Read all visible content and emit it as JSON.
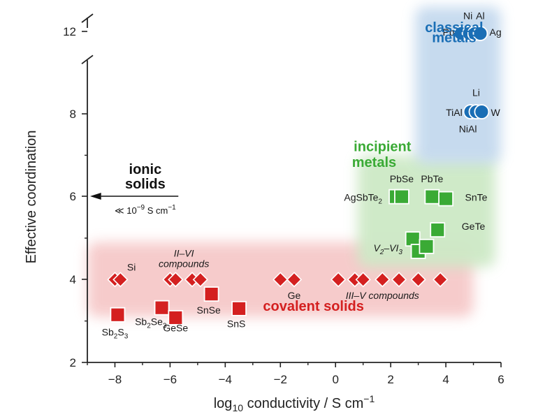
{
  "colors": {
    "covalent": "#d42020",
    "incipient": "#3aaa35",
    "metal": "#1a6eb5",
    "axis": "#222222",
    "covalent_bg": "#f6c9c9",
    "incipient_bg": "#cde9c6",
    "metal_bg": "#c4d9ee"
  },
  "chart_data": {
    "type": "scatter",
    "xlabel": {
      "main": "log",
      "sub": "10",
      "rest": " conductivity / S cm",
      "sup": "−1"
    },
    "ylabel": "Effective coordination",
    "xlim": [
      -9,
      6
    ],
    "ylim": [
      2,
      12
    ],
    "y_break": [
      9.3,
      11.5
    ],
    "xticks": [
      -8,
      -6,
      -4,
      -2,
      0,
      2,
      4,
      6
    ],
    "xtick_labels": [
      "−8",
      "−6",
      "−4",
      "−2",
      "0",
      "2",
      "4",
      "6"
    ],
    "yticks": [
      2,
      4,
      6,
      8,
      12
    ],
    "ytick_labels": [
      "2",
      "4",
      "6",
      "8",
      "12"
    ],
    "regions": [
      {
        "name": "covalent",
        "title": [
          "covalent solids"
        ],
        "x": [
          -9,
          5.0
        ],
        "y": [
          3.1,
          4.9
        ]
      },
      {
        "name": "incipient",
        "title": [
          "incipient",
          "metals"
        ],
        "x": [
          0.8,
          5.8
        ],
        "y": [
          4.3,
          7.0
        ]
      },
      {
        "name": "metal",
        "title": [
          "classical",
          "metals"
        ],
        "x": [
          2.9,
          6.0
        ],
        "y": [
          6.8,
          12.6
        ]
      }
    ],
    "ionic_solids": {
      "title": [
        "ionic",
        "solids"
      ],
      "note": "≪ 10",
      "note_sup": "−9",
      "note_unit": " S cm",
      "note_unit_sup": "−1"
    },
    "series": [
      {
        "name": "covalent solids",
        "marker": "diamond",
        "points": [
          [
            -8.0,
            4.0
          ],
          [
            -7.8,
            4.0
          ],
          [
            -6.0,
            4.0
          ],
          [
            -5.8,
            4.0
          ],
          [
            -5.2,
            4.0
          ],
          [
            -4.9,
            4.0
          ],
          [
            -2.0,
            4.0
          ],
          [
            -1.5,
            4.0
          ],
          [
            0.1,
            4.0
          ],
          [
            0.7,
            4.0
          ],
          [
            1.0,
            4.0
          ],
          [
            1.7,
            4.0
          ],
          [
            2.3,
            4.0
          ],
          [
            3.0,
            4.0
          ],
          [
            3.8,
            4.0
          ]
        ]
      },
      {
        "name": "covalent solids",
        "marker": "square",
        "points": [
          [
            -7.9,
            3.15
          ],
          [
            -6.3,
            3.32
          ],
          [
            -5.8,
            3.08
          ],
          [
            -4.5,
            3.65
          ],
          [
            -3.5,
            3.3
          ]
        ]
      },
      {
        "name": "incipient metals",
        "marker": "square",
        "points": [
          [
            2.2,
            6.0
          ],
          [
            2.4,
            6.0
          ],
          [
            3.5,
            6.0
          ],
          [
            4.0,
            5.95
          ],
          [
            3.7,
            5.2
          ],
          [
            2.8,
            4.98
          ],
          [
            3.0,
            4.68
          ],
          [
            3.3,
            4.8
          ]
        ]
      },
      {
        "name": "classical metals",
        "marker": "circle",
        "points": [
          [
            4.55,
            11.95
          ],
          [
            4.85,
            11.95
          ],
          [
            5.05,
            11.95
          ],
          [
            5.25,
            11.95
          ],
          [
            4.9,
            8.05
          ],
          [
            5.1,
            8.05
          ],
          [
            5.3,
            8.05
          ]
        ]
      }
    ],
    "labels": [
      {
        "text": "Si",
        "x": -7.4,
        "y": 4.22
      },
      {
        "text": "II–VI",
        "x": -5.5,
        "y": 4.55,
        "italic": true
      },
      {
        "text": "compounds",
        "x": -5.5,
        "y": 4.3,
        "italic": true
      },
      {
        "text": "Sb",
        "sub": "2",
        "text2": "S",
        "sub2": "3",
        "x": -8.0,
        "y": 2.65
      },
      {
        "text": "Sb",
        "sub": "2",
        "text2": "Se",
        "sub2": "3",
        "x": -6.7,
        "y": 2.9
      },
      {
        "text": "GeSe",
        "x": -5.8,
        "y": 2.75
      },
      {
        "text": "SnSe",
        "x": -4.6,
        "y": 3.18
      },
      {
        "text": "SnS",
        "x": -3.6,
        "y": 2.85
      },
      {
        "text": "Ge",
        "x": -1.5,
        "y": 3.53
      },
      {
        "text": "III–V compounds",
        "x": 1.7,
        "y": 3.53,
        "italic": true
      },
      {
        "text": "PbSe",
        "x": 2.4,
        "y": 6.35
      },
      {
        "text": "PbTe",
        "x": 3.5,
        "y": 6.35
      },
      {
        "text": "AgSbTe",
        "sub": "2",
        "x": 1.0,
        "y": 5.9
      },
      {
        "text": "SnTe",
        "x": 5.1,
        "y": 5.9
      },
      {
        "text": "GeTe",
        "x": 5.0,
        "y": 5.2
      },
      {
        "text": "V",
        "sub": "2",
        "text2": "–VI",
        "sub2": "3",
        "x": 1.9,
        "y": 4.68,
        "italic": true
      },
      {
        "text": "Ni",
        "x": 4.8,
        "y": 12.3
      },
      {
        "text": "Al",
        "x": 5.25,
        "y": 12.3
      },
      {
        "text": "Pb",
        "x": 4.1,
        "y": 11.9
      },
      {
        "text": "Ag",
        "x": 5.8,
        "y": 11.9
      },
      {
        "text": "Li",
        "x": 5.1,
        "y": 8.43
      },
      {
        "text": "TiAl",
        "x": 4.3,
        "y": 7.95
      },
      {
        "text": "W",
        "x": 5.8,
        "y": 7.95
      },
      {
        "text": "NiAl",
        "x": 4.8,
        "y": 7.55
      }
    ]
  }
}
